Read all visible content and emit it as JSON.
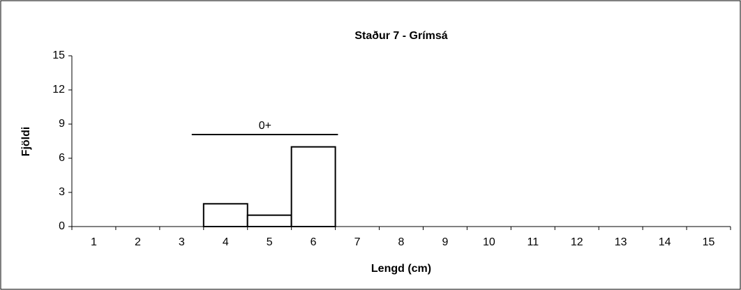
{
  "chart_data": {
    "type": "bar",
    "title": "Staður 7 - Grímsá",
    "x_label": "Lengd (cm)",
    "y_label": "Fjöldi",
    "annotation": "0+",
    "categories": [
      "1",
      "2",
      "3",
      "4",
      "5",
      "6",
      "7",
      "8",
      "9",
      "10",
      "11",
      "12",
      "13",
      "14",
      "15"
    ],
    "values": [
      0,
      0,
      0,
      2,
      1,
      7,
      0,
      0,
      0,
      0,
      0,
      0,
      0,
      0,
      0
    ],
    "color": "#ffffff",
    "ylim": [
      0,
      15
    ],
    "yticks": [
      0,
      3,
      6,
      9,
      12,
      15
    ],
    "grid": false
  }
}
